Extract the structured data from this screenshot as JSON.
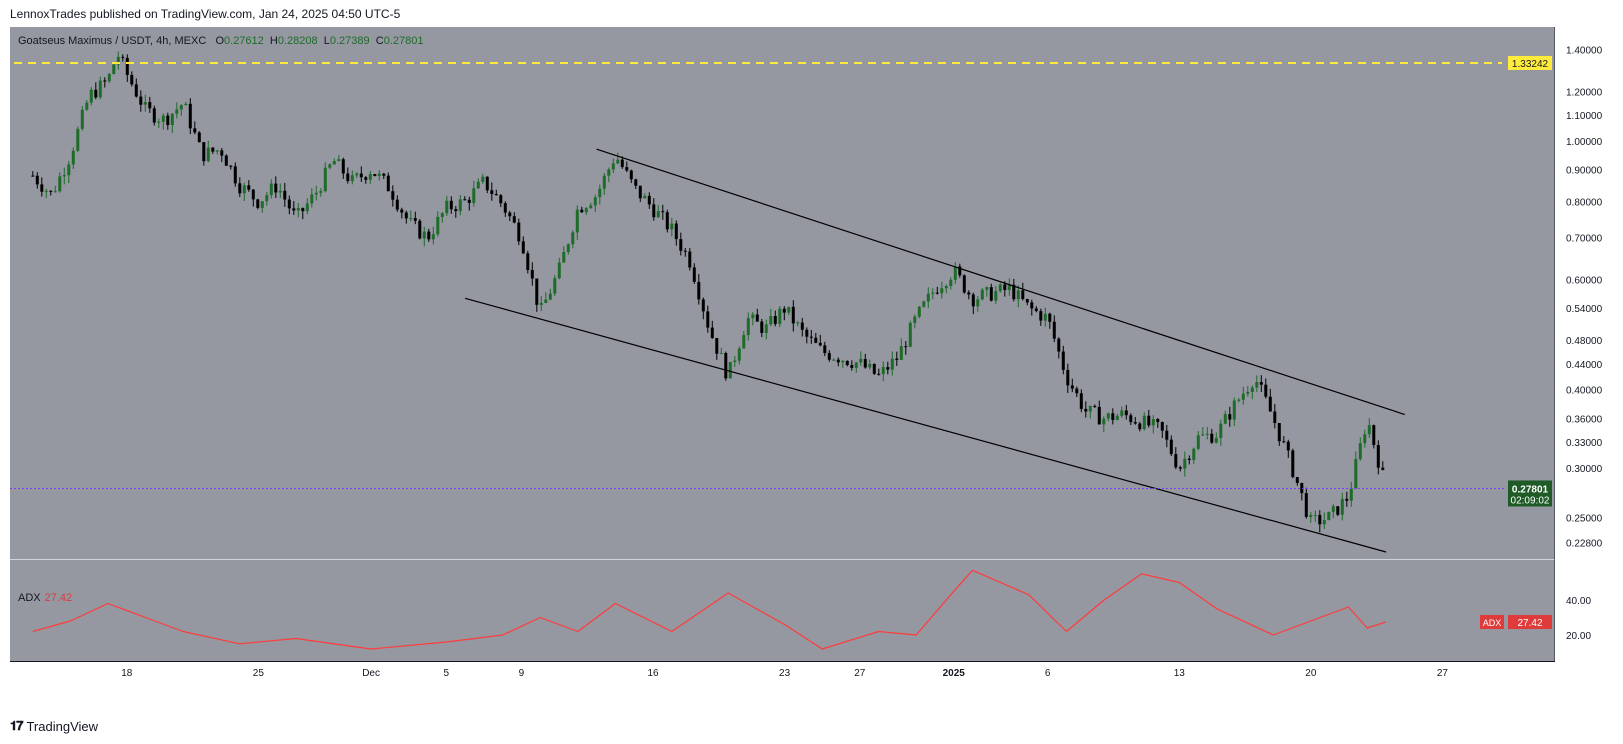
{
  "header": {
    "publisher_line": "LennoxTrades published on TradingView.com, Jan 24, 2025 04:50 UTC-5"
  },
  "legend": {
    "symbol": "Goatseus Maximus / USDT, 4h, MEXC",
    "open_label": "O",
    "open": "0.27612",
    "high_label": "H",
    "high": "0.28208",
    "low_label": "L",
    "low": "0.27389",
    "close_label": "C",
    "close": "0.27801"
  },
  "colors": {
    "plot_bg": "#9598a1",
    "up_candle": "#1e6b2a",
    "down_candle": "#000000",
    "adx_line": "#ff3b3b",
    "dashed_level": "#ffeb3b",
    "price_badge": "#1e5b27",
    "current_line": "#7a3df5"
  },
  "chart_data": {
    "type": "line",
    "title": "Goatseus Maximus / USDT, 4h, MEXC",
    "y_scale": "log",
    "ylim": [
      0.22,
      1.45
    ],
    "y_ticks": [
      "1.40000",
      "1.20000",
      "1.10000",
      "1.00000",
      "0.90000",
      "0.80000",
      "0.70000",
      "0.60000",
      "0.54000",
      "0.48000",
      "0.44000",
      "0.40000",
      "0.36000",
      "0.33000",
      "0.30000",
      "0.25000",
      "0.22800"
    ],
    "x_ticks": [
      "18",
      "25",
      "Dec",
      "5",
      "9",
      "16",
      "23",
      "27",
      "2025",
      "6",
      "13",
      "20",
      "27"
    ],
    "series": [
      {
        "values": [
          {
            "date": "2024-11-13",
            "close": 0.88
          },
          {
            "date": "2024-11-14",
            "close": 0.82
          },
          {
            "date": "2024-11-15",
            "close": 0.95
          },
          {
            "date": "2024-11-16",
            "close": 1.18
          },
          {
            "date": "2024-11-17",
            "close": 1.25
          },
          {
            "date": "2024-11-17.5",
            "close": 1.38
          },
          {
            "date": "2024-11-18",
            "close": 1.28
          },
          {
            "date": "2024-11-19",
            "close": 1.12
          },
          {
            "date": "2024-11-20",
            "close": 1.08
          },
          {
            "date": "2024-11-21",
            "close": 1.15
          },
          {
            "date": "2024-11-22",
            "close": 0.95
          },
          {
            "date": "2024-11-23",
            "close": 0.97
          },
          {
            "date": "2024-11-24",
            "close": 0.85
          },
          {
            "date": "2024-11-25",
            "close": 0.8
          },
          {
            "date": "2024-11-26",
            "close": 0.85
          },
          {
            "date": "2024-11-27",
            "close": 0.75
          },
          {
            "date": "2024-11-28",
            "close": 0.82
          },
          {
            "date": "2024-11-29",
            "close": 0.93
          },
          {
            "date": "2024-11-30",
            "close": 0.86
          },
          {
            "date": "2024-12-01",
            "close": 0.9
          },
          {
            "date": "2024-12-02",
            "close": 0.84
          },
          {
            "date": "2024-12-03",
            "close": 0.74
          },
          {
            "date": "2024-12-04",
            "close": 0.7
          },
          {
            "date": "2024-12-05",
            "close": 0.78
          },
          {
            "date": "2024-12-06",
            "close": 0.8
          },
          {
            "date": "2024-12-07",
            "close": 0.86
          },
          {
            "date": "2024-12-08",
            "close": 0.79
          },
          {
            "date": "2024-12-09",
            "close": 0.7
          },
          {
            "date": "2024-12-10",
            "close": 0.53
          },
          {
            "date": "2024-12-11",
            "close": 0.62
          },
          {
            "date": "2024-12-12",
            "close": 0.78
          },
          {
            "date": "2024-12-13",
            "close": 0.82
          },
          {
            "date": "2024-12-14",
            "close": 0.95
          },
          {
            "date": "2024-12-15",
            "close": 0.84
          },
          {
            "date": "2024-12-16",
            "close": 0.78
          },
          {
            "date": "2024-12-17",
            "close": 0.72
          },
          {
            "date": "2024-12-18",
            "close": 0.64
          },
          {
            "date": "2024-12-19",
            "close": 0.5
          },
          {
            "date": "2024-12-20",
            "close": 0.42
          },
          {
            "date": "2024-12-21",
            "close": 0.52
          },
          {
            "date": "2024-12-22",
            "close": 0.5
          },
          {
            "date": "2024-12-23",
            "close": 0.54
          },
          {
            "date": "2024-12-24",
            "close": 0.49
          },
          {
            "date": "2024-12-25",
            "close": 0.46
          },
          {
            "date": "2024-12-26",
            "close": 0.45
          },
          {
            "date": "2024-12-27",
            "close": 0.44
          },
          {
            "date": "2024-12-28",
            "close": 0.42
          },
          {
            "date": "2024-12-29",
            "close": 0.45
          },
          {
            "date": "2024-12-30",
            "close": 0.52
          },
          {
            "date": "2024-12-31",
            "close": 0.58
          },
          {
            "date": "2025-01-01",
            "close": 0.62
          },
          {
            "date": "2025-01-02",
            "close": 0.56
          },
          {
            "date": "2025-01-03",
            "close": 0.57
          },
          {
            "date": "2025-01-04",
            "close": 0.58
          },
          {
            "date": "2025-01-05",
            "close": 0.54
          },
          {
            "date": "2025-01-06",
            "close": 0.52
          },
          {
            "date": "2025-01-07",
            "close": 0.42
          },
          {
            "date": "2025-01-08",
            "close": 0.37
          },
          {
            "date": "2025-01-09",
            "close": 0.36
          },
          {
            "date": "2025-01-10",
            "close": 0.365
          },
          {
            "date": "2025-01-11",
            "close": 0.355
          },
          {
            "date": "2025-01-12",
            "close": 0.345
          },
          {
            "date": "2025-01-13",
            "close": 0.3
          },
          {
            "date": "2025-01-14",
            "close": 0.335
          },
          {
            "date": "2025-01-15",
            "close": 0.34
          },
          {
            "date": "2025-01-16",
            "close": 0.38
          },
          {
            "date": "2025-01-17",
            "close": 0.42
          },
          {
            "date": "2025-01-18",
            "close": 0.36
          },
          {
            "date": "2025-01-19",
            "close": 0.3
          },
          {
            "date": "2025-01-20",
            "close": 0.245
          },
          {
            "date": "2025-01-21",
            "close": 0.25
          },
          {
            "date": "2025-01-22",
            "close": 0.27
          },
          {
            "date": "2025-01-23",
            "close": 0.36
          },
          {
            "date": "2025-01-24",
            "close": 0.278
          }
        ]
      }
    ],
    "price_level": 1.33242,
    "price_level_label": "1.33242",
    "current_price_label": "0.27801",
    "countdown_label": "02:09:02",
    "channel_upper": [
      {
        "date": "2024-12-13",
        "price": 0.97
      },
      {
        "date": "2025-01-25",
        "price": 0.365
      }
    ],
    "channel_lower": [
      {
        "date": "2024-12-06",
        "price": 0.56
      },
      {
        "date": "2025-01-24",
        "price": 0.22
      }
    ]
  },
  "adx": {
    "label": "ADX",
    "value": "27.42",
    "badge_label": "ADX",
    "badge_value": "27.42",
    "y_ticks": [
      "40.00",
      "20.00"
    ],
    "values": [
      {
        "date": "2024-11-13",
        "adx": 22
      },
      {
        "date": "2024-11-15",
        "adx": 28
      },
      {
        "date": "2024-11-17",
        "adx": 38
      },
      {
        "date": "2024-11-19",
        "adx": 30
      },
      {
        "date": "2024-11-21",
        "adx": 22
      },
      {
        "date": "2024-11-24",
        "adx": 15
      },
      {
        "date": "2024-11-27",
        "adx": 18
      },
      {
        "date": "2024-12-01",
        "adx": 12
      },
      {
        "date": "2024-12-05",
        "adx": 16
      },
      {
        "date": "2024-12-08",
        "adx": 20
      },
      {
        "date": "2024-12-10",
        "adx": 30
      },
      {
        "date": "2024-12-12",
        "adx": 22
      },
      {
        "date": "2024-12-14",
        "adx": 38
      },
      {
        "date": "2024-12-17",
        "adx": 22
      },
      {
        "date": "2024-12-20",
        "adx": 44
      },
      {
        "date": "2024-12-23",
        "adx": 26
      },
      {
        "date": "2024-12-25",
        "adx": 12
      },
      {
        "date": "2024-12-28",
        "adx": 22
      },
      {
        "date": "2024-12-30",
        "adx": 20
      },
      {
        "date": "2025-01-01",
        "adx": 45
      },
      {
        "date": "2025-01-02",
        "adx": 57
      },
      {
        "date": "2025-01-05",
        "adx": 43
      },
      {
        "date": "2025-01-07",
        "adx": 22
      },
      {
        "date": "2025-01-09",
        "adx": 40
      },
      {
        "date": "2025-01-11",
        "adx": 55
      },
      {
        "date": "2025-01-13",
        "adx": 50
      },
      {
        "date": "2025-01-15",
        "adx": 35
      },
      {
        "date": "2025-01-18",
        "adx": 20
      },
      {
        "date": "2025-01-20",
        "adx": 28
      },
      {
        "date": "2025-01-22",
        "adx": 36
      },
      {
        "date": "2025-01-23",
        "adx": 24
      },
      {
        "date": "2025-01-24",
        "adx": 27.42
      }
    ]
  },
  "footer": {
    "brand": "TradingView"
  }
}
